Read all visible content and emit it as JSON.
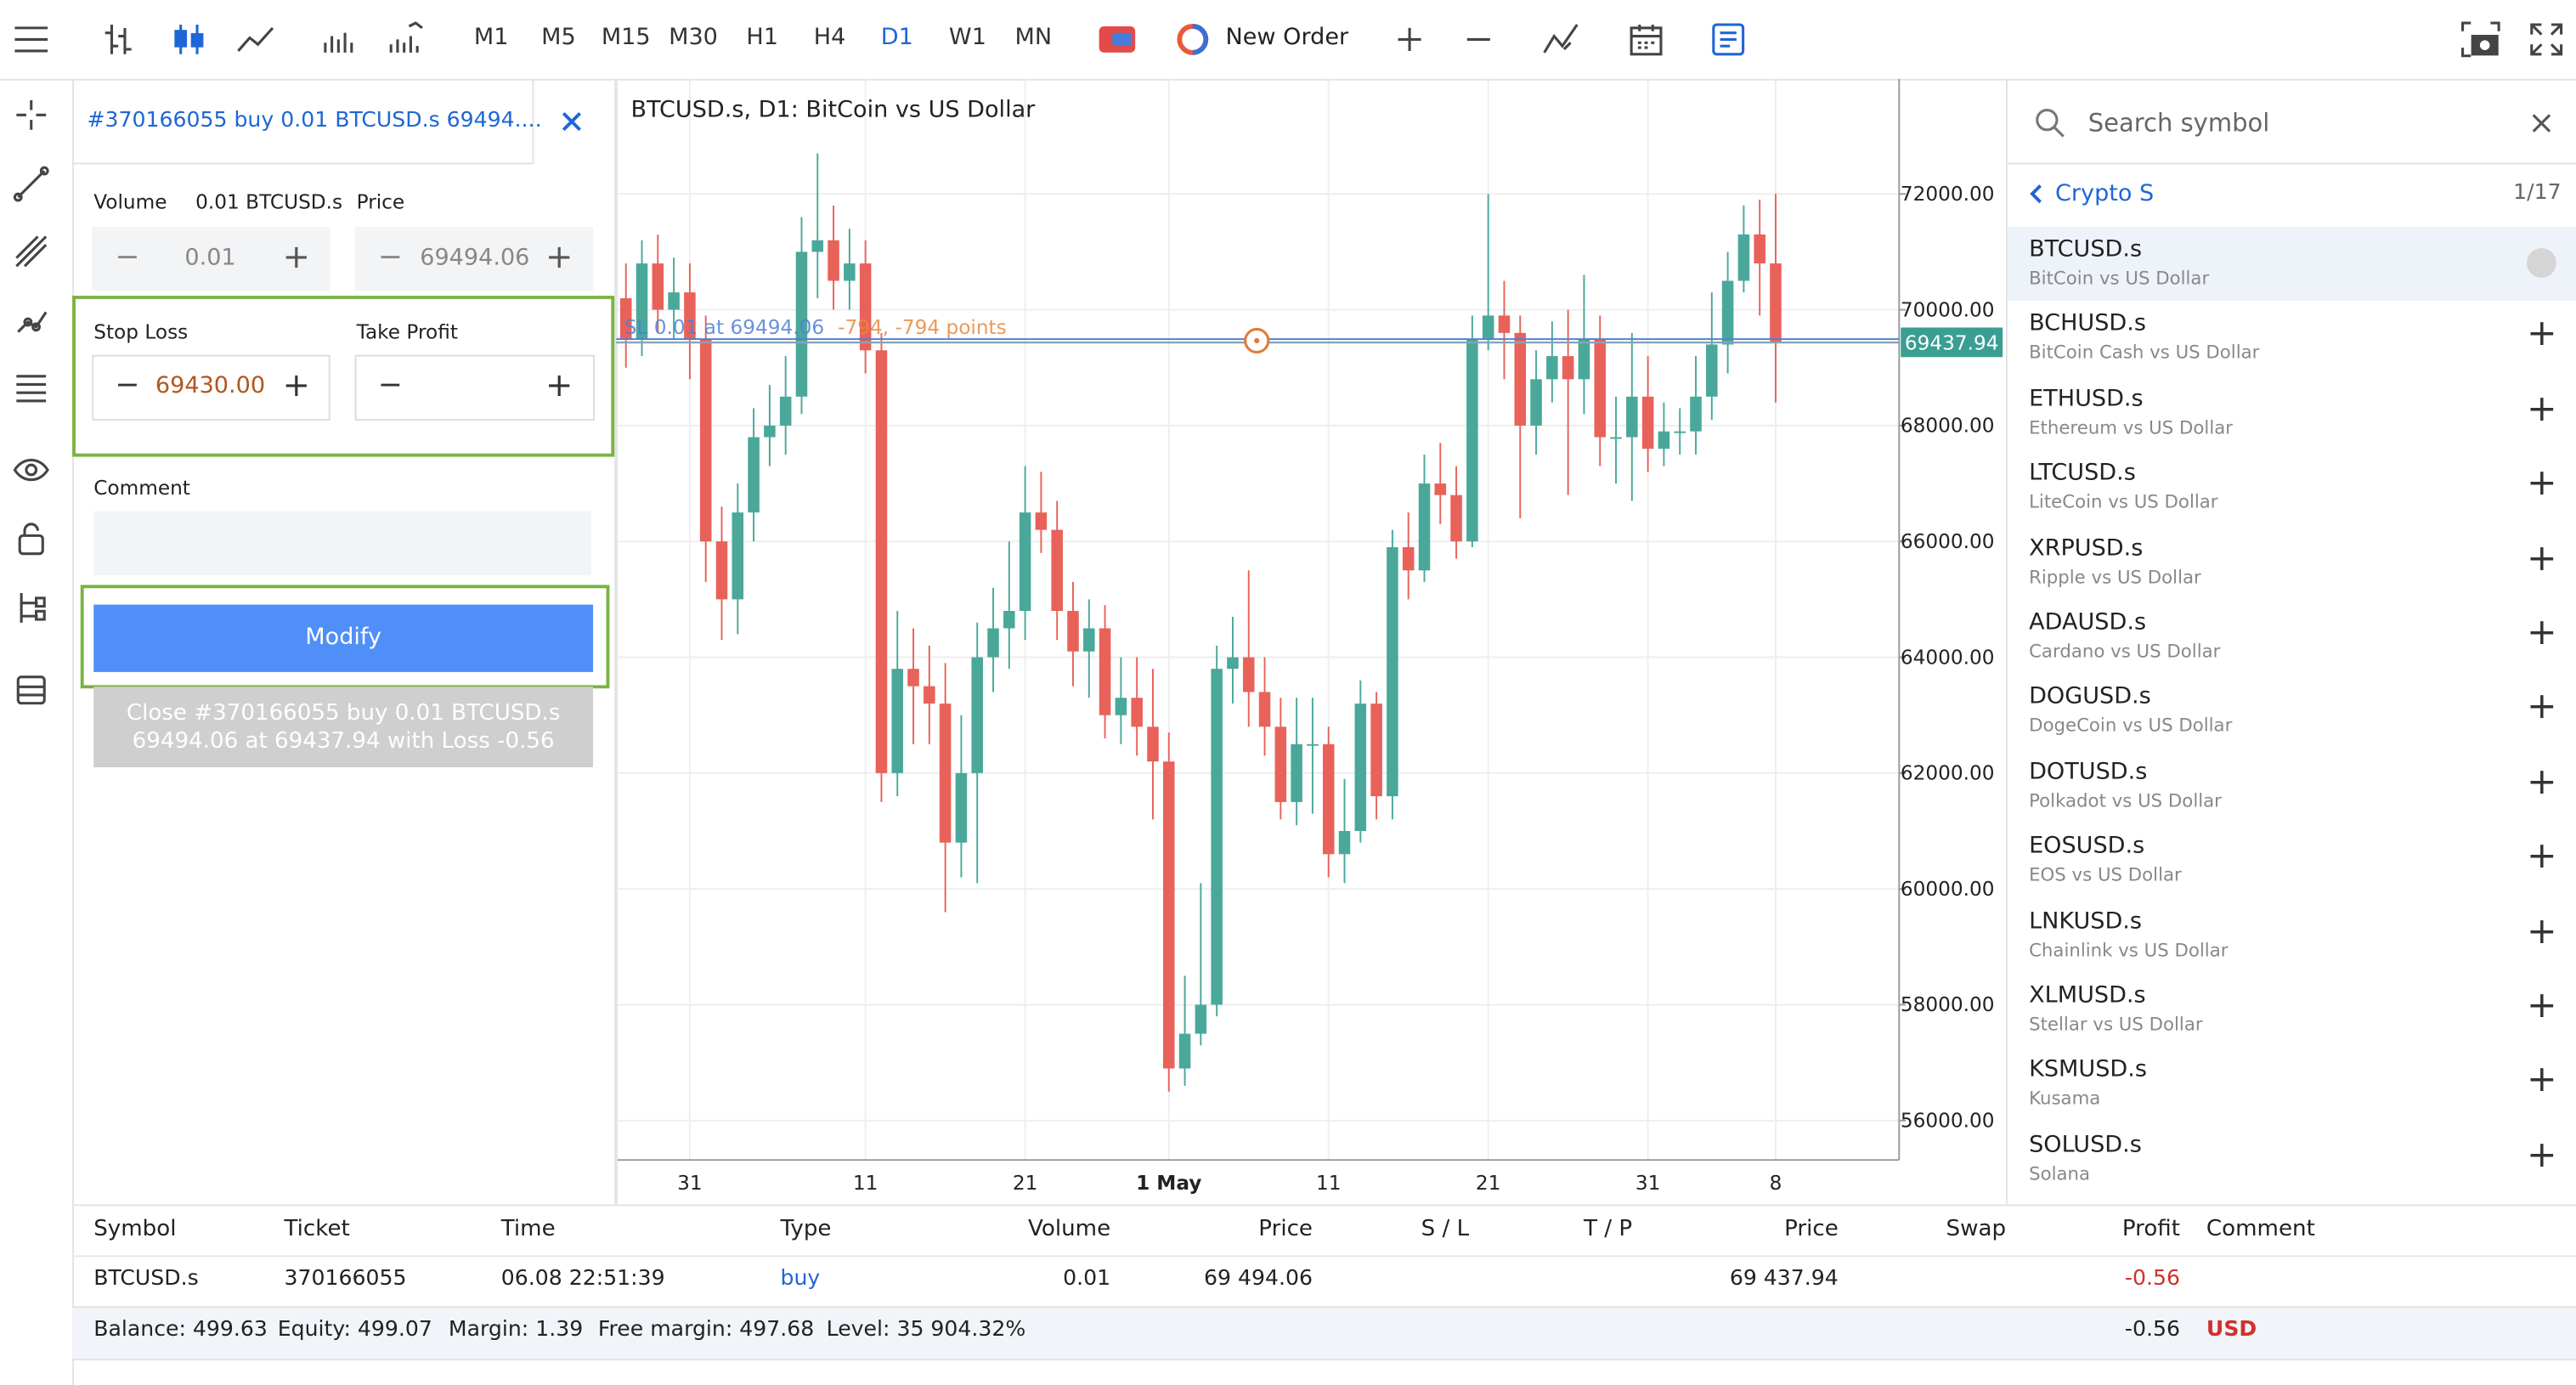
{
  "toolbar": {
    "timeframes": [
      "M1",
      "M5",
      "M15",
      "M30",
      "H1",
      "H4",
      "D1",
      "W1",
      "MN"
    ],
    "active_timeframe": "D1",
    "new_order": "New Order"
  },
  "order_panel": {
    "title": "#370166055 buy 0.01 BTCUSD.s 69494....",
    "volume_label": "Volume",
    "volume_symbol": "0.01 BTCUSD.s",
    "volume": "0.01",
    "price_label": "Price",
    "price": "69494.06",
    "stop_loss_label": "Stop Loss",
    "stop_loss": "69430.00",
    "take_profit_label": "Take Profit",
    "comment_label": "Comment",
    "modify": "Modify",
    "close_button": [
      "Close #370166055 buy 0.01 BTCUSD.s",
      "69494.06 at 69437.94 with Loss -0.56"
    ]
  },
  "chart": {
    "type": "candlestick",
    "title": "BTCUSD.s, D1: BitCoin vs US Dollar",
    "up_color": "#4aa89a",
    "down_color": "#e8625a",
    "open": [
      70200,
      69500,
      70800,
      70000,
      70300,
      69500,
      66000,
      65000,
      66500,
      67800,
      68000,
      68500,
      71000,
      71200,
      70500,
      70800,
      69300,
      62000,
      63800,
      63500,
      63200,
      60800,
      62000,
      64000,
      64500,
      64800,
      66500,
      66200,
      64800,
      64100,
      64500,
      63000,
      63300,
      62800,
      62200,
      56900,
      57500,
      58000,
      63800,
      64000,
      63400,
      62800,
      61500,
      62500,
      62500,
      60600,
      61000,
      63200,
      61600,
      65900,
      65500,
      67000,
      66800,
      66000,
      69500,
      69900,
      69600,
      68000,
      68800,
      69200,
      68800,
      69500,
      67800,
      67800,
      68500,
      67600,
      67900,
      67900,
      68500,
      69400,
      70500,
      71300,
      70800
    ],
    "high": [
      70800,
      71200,
      71300,
      70900,
      70800,
      69900,
      66600,
      67000,
      68300,
      68700,
      69200,
      71600,
      72700,
      71800,
      71400,
      71200,
      69600,
      64800,
      64500,
      64200,
      63900,
      63000,
      64600,
      65200,
      66000,
      67300,
      67200,
      66700,
      65300,
      65000,
      64900,
      64000,
      64000,
      63800,
      62700,
      58500,
      60100,
      64200,
      64700,
      65500,
      64000,
      63300,
      63300,
      63300,
      62800,
      61900,
      63600,
      63400,
      66200,
      66500,
      67500,
      67700,
      67300,
      69900,
      72000,
      70500,
      69900,
      69300,
      69800,
      70000,
      70600,
      69900,
      68500,
      69600,
      69200,
      68400,
      68300,
      69200,
      70300,
      71000,
      71800,
      71900,
      72000
    ],
    "low": [
      69000,
      69200,
      69600,
      69500,
      68800,
      65300,
      64300,
      64400,
      66000,
      67300,
      67500,
      68200,
      70200,
      70000,
      70000,
      68900,
      61500,
      61600,
      62500,
      62500,
      59600,
      60200,
      60100,
      63400,
      63800,
      64300,
      65800,
      64300,
      63500,
      63300,
      62600,
      62500,
      62300,
      61200,
      56500,
      56600,
      57300,
      57800,
      63200,
      62800,
      62300,
      61200,
      61100,
      61300,
      60200,
      60100,
      60800,
      61200,
      61200,
      65000,
      65300,
      66300,
      65700,
      65900,
      69300,
      68800,
      66400,
      67500,
      68400,
      66800,
      68200,
      67300,
      67000,
      66700,
      67200,
      67300,
      67500,
      67500,
      68100,
      68900,
      70300,
      69900,
      68400
    ],
    "close": [
      69500,
      70800,
      70000,
      70300,
      69500,
      66000,
      65000,
      66500,
      67800,
      68000,
      68500,
      71000,
      71200,
      70500,
      70800,
      69300,
      62000,
      63800,
      63500,
      63200,
      60800,
      62000,
      64000,
      64500,
      64800,
      66500,
      66200,
      64800,
      64100,
      64500,
      63000,
      63300,
      62800,
      62200,
      56900,
      57500,
      58000,
      63800,
      64000,
      63400,
      62800,
      61500,
      62500,
      62500,
      60600,
      61000,
      63200,
      61600,
      65900,
      65500,
      67000,
      66800,
      66000,
      69500,
      69900,
      69600,
      68000,
      68800,
      69200,
      68800,
      69500,
      67800,
      67800,
      68500,
      67600,
      67900,
      67900,
      68500,
      69400,
      70500,
      71300,
      70800,
      69437.94
    ],
    "ylim": [
      55320,
      73930
    ],
    "yticks": [
      {
        "value": 56000,
        "label": "56000.00"
      },
      {
        "value": 58000,
        "label": "58000.00"
      },
      {
        "value": 60000,
        "label": "60000.00"
      },
      {
        "value": 62000,
        "label": "62000.00"
      },
      {
        "value": 64000,
        "label": "64000.00"
      },
      {
        "value": 66000,
        "label": "66000.00"
      },
      {
        "value": 68000,
        "label": "68000.00"
      },
      {
        "value": 70000,
        "label": "70000.00"
      },
      {
        "value": 72000,
        "label": "72000.00"
      }
    ],
    "xticks": [
      {
        "value": 4,
        "label": "31"
      },
      {
        "value": 15,
        "label": "11"
      },
      {
        "value": 25,
        "label": "21"
      },
      {
        "value": 34,
        "label": "1 May",
        "bold": true
      },
      {
        "value": 44,
        "label": "11"
      },
      {
        "value": 54,
        "label": "21"
      },
      {
        "value": 64,
        "label": "31"
      },
      {
        "value": 72,
        "label": "8"
      }
    ],
    "grid": true,
    "bid": 69437.94,
    "stop_loss": 69430,
    "order_line": {
      "price": 69494.06,
      "label": "SL 0.01 at 69494.06",
      "pnl_label": "-794, -794 points"
    }
  },
  "symbols": {
    "search_placeholder": "Search symbol",
    "group": "Crypto S",
    "page": "1/17",
    "selected": "BTCUSD.s",
    "items": [
      {
        "symbol": "BTCUSD.s",
        "description": "BitCoin vs US Dollar"
      },
      {
        "symbol": "BCHUSD.s",
        "description": "BitCoin Cash vs US Dollar"
      },
      {
        "symbol": "ETHUSD.s",
        "description": "Ethereum vs US Dollar"
      },
      {
        "symbol": "LTCUSD.s",
        "description": "LiteCoin vs US Dollar"
      },
      {
        "symbol": "XRPUSD.s",
        "description": "Ripple vs US Dollar"
      },
      {
        "symbol": "ADAUSD.s",
        "description": "Cardano vs US Dollar"
      },
      {
        "symbol": "DOGUSD.s",
        "description": "DogeCoin vs US Dollar"
      },
      {
        "symbol": "DOTUSD.s",
        "description": "Polkadot vs US Dollar"
      },
      {
        "symbol": "EOSUSD.s",
        "description": "EOS vs US Dollar"
      },
      {
        "symbol": "LNKUSD.s",
        "description": "Chainlink vs US Dollar"
      },
      {
        "symbol": "XLMUSD.s",
        "description": "Stellar vs US Dollar"
      },
      {
        "symbol": "KSMUSD.s",
        "description": "Kusama"
      },
      {
        "symbol": "SOLUSD.s",
        "description": "Solana"
      }
    ]
  },
  "positions": {
    "columns": [
      "Symbol",
      "Ticket",
      "Time",
      "Type",
      "Volume",
      "Price",
      "S / L",
      "T / P",
      "Price",
      "Swap",
      "Profit",
      "Comment"
    ],
    "rows": [
      [
        "BTCUSD.s",
        "370166055",
        "06.08 22:51:39",
        "buy",
        "0.01",
        "69 494.06",
        null,
        null,
        "69 437.94",
        null,
        "-0.56",
        null
      ]
    ],
    "summary": [
      "Balance: 499.63",
      "Equity: 499.07",
      "Margin: 1.39",
      "Free margin: 497.68",
      "Level: 35 904.32%"
    ],
    "total_profit": "-0.56",
    "currency": "USD"
  }
}
